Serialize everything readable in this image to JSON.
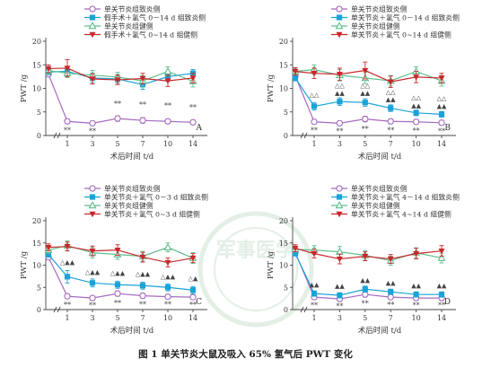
{
  "figure": {
    "caption": "图 1 单关节炎大鼠及吸入 65% 氢气后 PWT 变化",
    "watermark": "军事医学"
  },
  "colors": {
    "purple": "#a56bc0",
    "blue": "#1aa3d8",
    "green": "#5fbe8c",
    "red": "#c8282a",
    "axis": "#444444",
    "star": "#444444"
  },
  "chart_data": [
    {
      "panel": "A",
      "type": "line",
      "ylabel": "PWT /g",
      "xlabel": "术后时间 t/d",
      "x": [
        0,
        1,
        3,
        5,
        7,
        10,
        14
      ],
      "x_tick_labels": [
        "",
        "1",
        "3",
        "5",
        "7",
        "10",
        "14"
      ],
      "ylim": [
        0,
        20
      ],
      "y_ticks": [
        0,
        5,
        10,
        15,
        20
      ],
      "series": [
        {
          "name": "单关节炎组致炎侧",
          "color": "purple",
          "marker": "circle-open",
          "values": [
            13.0,
            3.0,
            2.6,
            3.6,
            3.2,
            3.0,
            2.8
          ],
          "errors": [
            0.4,
            0.5,
            0.5,
            0.6,
            0.6,
            0.5,
            0.5
          ]
        },
        {
          "name": "假手术＋氢气 0－14 d 组致炎侧",
          "color": "blue",
          "marker": "square",
          "values": [
            13.5,
            13.6,
            12.2,
            12.0,
            10.8,
            12.5,
            13.2
          ],
          "errors": [
            0.6,
            0.8,
            1.0,
            0.9,
            1.0,
            1.0,
            0.8
          ]
        },
        {
          "name": "单关节炎组健侧",
          "color": "green",
          "marker": "triangle-open",
          "values": [
            13.8,
            13.2,
            12.8,
            12.4,
            11.6,
            13.6,
            11.5
          ],
          "errors": [
            0.7,
            0.9,
            1.0,
            1.0,
            1.1,
            1.0,
            1.2
          ]
        },
        {
          "name": "假手术＋氢气 0~14 d 组健侧",
          "color": "red",
          "marker": "triangle-down",
          "values": [
            14.2,
            14.3,
            12.0,
            11.8,
            12.1,
            11.6,
            12.2
          ],
          "errors": [
            0.8,
            1.8,
            1.1,
            1.0,
            1.1,
            1.2,
            1.0
          ]
        }
      ],
      "annotations": [
        {
          "x": 1,
          "y": 0.6,
          "text": "**"
        },
        {
          "x": 3,
          "y": 0.4,
          "text": "**"
        },
        {
          "x": 5,
          "y": 6.2,
          "text": "**"
        },
        {
          "x": 7,
          "y": 6.0,
          "text": "**"
        },
        {
          "x": 10,
          "y": 5.8,
          "text": "**"
        },
        {
          "x": 14,
          "y": 5.4,
          "text": "**"
        }
      ]
    },
    {
      "panel": "B",
      "type": "line",
      "ylabel": "PWT /g",
      "xlabel": "术后时间 t/d",
      "x": [
        0,
        1,
        3,
        5,
        7,
        10,
        14
      ],
      "x_tick_labels": [
        "",
        "1",
        "3",
        "5",
        "7",
        "10",
        "14"
      ],
      "ylim": [
        0,
        20
      ],
      "y_ticks": [
        0,
        5,
        10,
        15,
        20
      ],
      "series": [
        {
          "name": "单关节炎组致炎侧",
          "color": "purple",
          "marker": "circle-open",
          "values": [
            12.6,
            2.9,
            2.6,
            3.5,
            3.0,
            2.9,
            2.7
          ],
          "errors": [
            0.4,
            0.5,
            0.5,
            0.6,
            0.5,
            0.5,
            0.5
          ]
        },
        {
          "name": "单关节炎＋氢气 0－14 d 组致炎侧",
          "color": "blue",
          "marker": "square",
          "values": [
            12.2,
            6.2,
            7.2,
            7.0,
            5.8,
            4.8,
            4.5
          ],
          "errors": [
            0.6,
            0.8,
            0.8,
            0.8,
            0.7,
            0.6,
            0.6
          ]
        },
        {
          "name": "单关节炎组健侧",
          "color": "green",
          "marker": "triangle-open",
          "values": [
            13.6,
            14.0,
            12.8,
            12.2,
            11.6,
            13.6,
            11.6
          ],
          "errors": [
            0.7,
            1.0,
            1.2,
            1.2,
            1.1,
            1.0,
            1.1
          ]
        },
        {
          "name": "单关节炎＋氢气 0~14 d 组健侧",
          "color": "red",
          "marker": "triangle-down",
          "values": [
            13.6,
            13.2,
            13.0,
            13.8,
            11.4,
            12.4,
            12.2
          ],
          "errors": [
            0.8,
            1.1,
            1.3,
            1.8,
            1.2,
            1.2,
            1.0
          ]
        }
      ],
      "annotations": [
        {
          "x": 1,
          "y": 0.6,
          "text": "**"
        },
        {
          "x": 3,
          "y": 0.4,
          "text": "**"
        },
        {
          "x": 5,
          "y": 0.9,
          "text": "**"
        },
        {
          "x": 7,
          "y": 0.6,
          "text": "**"
        },
        {
          "x": 10,
          "y": 0.5,
          "text": "**"
        },
        {
          "x": 14,
          "y": 0.4,
          "text": "**"
        },
        {
          "x": 1,
          "y": 8.2,
          "text": "△△"
        },
        {
          "x": 3,
          "y": 10.2,
          "text": "△△"
        },
        {
          "x": 5,
          "y": 10.2,
          "text": "△△"
        },
        {
          "x": 7,
          "y": 8.8,
          "text": "△△"
        },
        {
          "x": 10,
          "y": 7.6,
          "text": "△△"
        },
        {
          "x": 14,
          "y": 7.4,
          "text": "△△"
        },
        {
          "x": 3,
          "y": 8.6,
          "text": "▲▲"
        },
        {
          "x": 5,
          "y": 8.6,
          "text": "▲▲"
        },
        {
          "x": 7,
          "y": 7.2,
          "text": "▲▲"
        },
        {
          "x": 10,
          "y": 5.9,
          "text": "▲▲"
        },
        {
          "x": 14,
          "y": 5.8,
          "text": "▲▲"
        }
      ]
    },
    {
      "panel": "C",
      "type": "line",
      "ylabel": "PWT /g",
      "xlabel": "术后时间 t/d",
      "x": [
        0,
        1,
        3,
        5,
        7,
        10,
        14
      ],
      "x_tick_labels": [
        "",
        "1",
        "3",
        "5",
        "7",
        "10",
        "14"
      ],
      "ylim": [
        0,
        20
      ],
      "y_ticks": [
        0,
        5,
        10,
        15,
        20
      ],
      "series": [
        {
          "name": "单关节炎组致炎侧",
          "color": "purple",
          "marker": "circle-open",
          "values": [
            11.8,
            3.0,
            2.6,
            3.6,
            3.1,
            2.9,
            2.8
          ],
          "errors": [
            0.4,
            0.5,
            0.5,
            0.6,
            0.6,
            0.5,
            0.5
          ]
        },
        {
          "name": "单关节炎＋氢气 0－3 d 组致炎侧",
          "color": "blue",
          "marker": "square",
          "values": [
            12.4,
            7.4,
            6.0,
            5.6,
            5.4,
            5.0,
            4.4
          ],
          "errors": [
            0.6,
            1.4,
            0.9,
            0.8,
            0.8,
            0.8,
            0.8
          ]
        },
        {
          "name": "单关节炎组健侧",
          "color": "green",
          "marker": "triangle-open",
          "values": [
            13.4,
            14.4,
            12.8,
            12.4,
            12.0,
            14.0,
            11.6
          ],
          "errors": [
            0.7,
            1.1,
            1.2,
            1.1,
            1.1,
            1.0,
            1.2
          ]
        },
        {
          "name": "单关节炎＋氢气 0~3 d 组健侧",
          "color": "red",
          "marker": "triangle-down",
          "values": [
            14.0,
            14.2,
            13.2,
            13.4,
            11.8,
            10.6,
            11.6
          ],
          "errors": [
            0.8,
            1.0,
            1.1,
            1.2,
            1.1,
            1.0,
            1.0
          ]
        }
      ],
      "annotations": [
        {
          "x": 1,
          "y": 0.5,
          "text": "**"
        },
        {
          "x": 3,
          "y": 0.4,
          "text": "**"
        },
        {
          "x": 5,
          "y": 0.9,
          "text": "**"
        },
        {
          "x": 7,
          "y": 0.6,
          "text": "**"
        },
        {
          "x": 10,
          "y": 0.6,
          "text": "**"
        },
        {
          "x": 14,
          "y": 0.5,
          "text": "**"
        },
        {
          "x": 1,
          "y": 10.2,
          "text": "△▲▲"
        },
        {
          "x": 3,
          "y": 8.0,
          "text": "△▲▲"
        },
        {
          "x": 5,
          "y": 7.8,
          "text": "△▲▲"
        },
        {
          "x": 7,
          "y": 7.6,
          "text": "△▲▲"
        },
        {
          "x": 10,
          "y": 7.0,
          "text": "△▲▲"
        },
        {
          "x": 14,
          "y": 6.6,
          "text": "△▲"
        }
      ]
    },
    {
      "panel": "D",
      "type": "line",
      "ylabel": "PWT /g",
      "xlabel": "术后时间 t/d",
      "x": [
        0,
        1,
        3,
        5,
        7,
        10,
        14
      ],
      "x_tick_labels": [
        "",
        "1",
        "3",
        "5",
        "7",
        "10",
        "14"
      ],
      "ylim": [
        0,
        20
      ],
      "y_ticks": [
        0,
        5,
        10,
        15,
        20
      ],
      "series": [
        {
          "name": "单关节炎组致炎侧",
          "color": "purple",
          "marker": "circle-open",
          "values": [
            12.8,
            2.8,
            2.4,
            3.4,
            2.8,
            2.6,
            2.6
          ],
          "errors": [
            0.4,
            0.5,
            0.5,
            0.6,
            0.5,
            0.5,
            0.5
          ]
        },
        {
          "name": "单关节炎＋氢气 4－14 d 组致炎侧",
          "color": "blue",
          "marker": "square",
          "values": [
            12.6,
            3.6,
            3.2,
            4.6,
            4.0,
            3.4,
            3.4
          ],
          "errors": [
            0.5,
            0.6,
            0.6,
            0.7,
            0.6,
            0.6,
            0.6
          ]
        },
        {
          "name": "单关节炎组健侧",
          "color": "green",
          "marker": "triangle-open",
          "values": [
            13.6,
            13.4,
            13.0,
            12.2,
            11.0,
            12.8,
            11.6
          ],
          "errors": [
            0.7,
            1.0,
            1.2,
            1.1,
            1.0,
            1.1,
            1.1
          ]
        },
        {
          "name": "单关节炎＋氢气 4~14 d 组健侧",
          "color": "red",
          "marker": "triangle-down",
          "values": [
            13.8,
            12.6,
            11.4,
            12.0,
            11.4,
            12.6,
            13.2
          ],
          "errors": [
            0.8,
            1.0,
            1.1,
            1.0,
            1.0,
            1.2,
            1.2
          ]
        }
      ],
      "annotations": [
        {
          "x": 1,
          "y": 0.4,
          "text": "**"
        },
        {
          "x": 3,
          "y": 0.2,
          "text": "**"
        },
        {
          "x": 5,
          "y": 0.8,
          "text": "**"
        },
        {
          "x": 7,
          "y": 0.5,
          "text": "**"
        },
        {
          "x": 10,
          "y": 0.4,
          "text": "**"
        },
        {
          "x": 14,
          "y": 0.4,
          "text": "**"
        },
        {
          "x": 1,
          "y": 5.2,
          "text": "▲▲"
        },
        {
          "x": 3,
          "y": 4.8,
          "text": "▲▲"
        },
        {
          "x": 5,
          "y": 6.2,
          "text": "▲▲"
        },
        {
          "x": 7,
          "y": 5.6,
          "text": "▲▲"
        },
        {
          "x": 10,
          "y": 5.0,
          "text": "▲▲"
        },
        {
          "x": 14,
          "y": 5.0,
          "text": "▲▲"
        }
      ]
    }
  ]
}
